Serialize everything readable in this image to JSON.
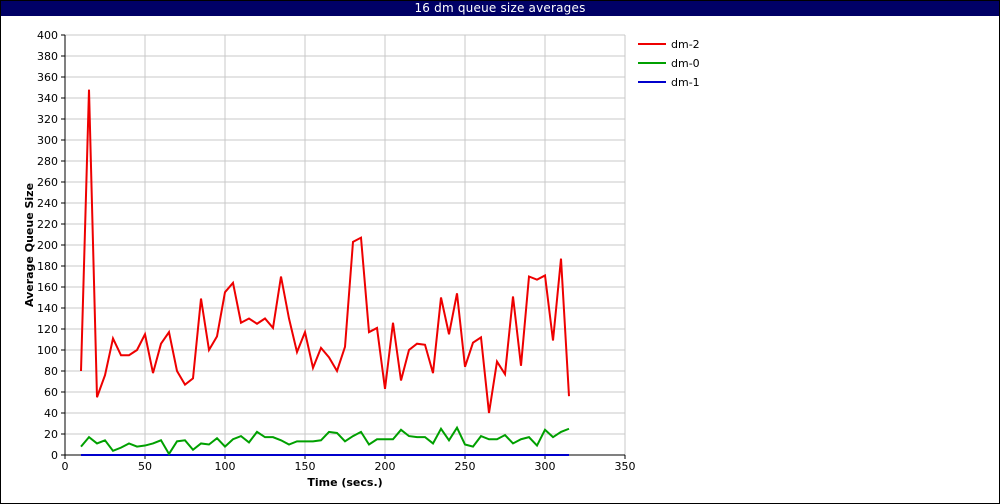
{
  "window": {
    "title": "16 dm queue size averages"
  },
  "chart_data": {
    "type": "line",
    "title": "16 dm queue size averages",
    "xlabel": "Time (secs.)",
    "ylabel": "Average Queue Size",
    "xlim": [
      0,
      350
    ],
    "ylim": [
      0,
      400
    ],
    "xticks": [
      0,
      50,
      100,
      150,
      200,
      250,
      300,
      350
    ],
    "yticks": [
      0,
      20,
      40,
      60,
      80,
      100,
      120,
      140,
      160,
      180,
      200,
      220,
      240,
      260,
      280,
      300,
      320,
      340,
      360,
      380,
      400
    ],
    "grid": true,
    "legend_position": "right",
    "x": [
      10,
      15,
      20,
      25,
      30,
      35,
      40,
      45,
      50,
      55,
      60,
      65,
      70,
      75,
      80,
      85,
      90,
      95,
      100,
      105,
      110,
      115,
      120,
      125,
      130,
      135,
      140,
      145,
      150,
      155,
      160,
      165,
      170,
      175,
      180,
      185,
      190,
      195,
      200,
      205,
      210,
      215,
      220,
      225,
      230,
      235,
      240,
      245,
      250,
      255,
      260,
      265,
      270,
      275,
      280,
      285,
      290,
      295,
      300,
      305,
      310,
      315
    ],
    "series": [
      {
        "name": "dm-2",
        "color": "#ee0000",
        "values": [
          80,
          348,
          55,
          76,
          111,
          95,
          95,
          100,
          115,
          78,
          106,
          117,
          80,
          67,
          73,
          149,
          100,
          113,
          155,
          164,
          126,
          130,
          125,
          130,
          121,
          170,
          130,
          98,
          117,
          83,
          102,
          93,
          80,
          103,
          203,
          207,
          117,
          121,
          63,
          126,
          71,
          100,
          106,
          105,
          78,
          150,
          115,
          154,
          84,
          107,
          112,
          40,
          89,
          77,
          151,
          85,
          170,
          167,
          171,
          109,
          187,
          56
        ]
      },
      {
        "name": "dm-0",
        "color": "#00a000",
        "values": [
          8,
          17,
          11,
          14,
          4,
          7,
          11,
          8,
          9,
          11,
          14,
          1,
          13,
          14,
          5,
          11,
          10,
          16,
          8,
          15,
          18,
          12,
          22,
          17,
          17,
          14,
          10,
          13,
          13,
          13,
          14,
          22,
          21,
          13,
          18,
          22,
          10,
          15,
          15,
          15,
          24,
          18,
          17,
          17,
          11,
          25,
          14,
          26,
          10,
          8,
          18,
          15,
          15,
          19,
          11,
          15,
          17,
          9,
          24,
          17,
          22,
          25
        ]
      },
      {
        "name": "dm-1",
        "color": "#0000cc",
        "values": [
          0,
          0,
          0,
          0,
          0,
          0,
          0,
          0,
          0,
          0,
          0,
          0,
          0,
          0,
          0,
          0,
          0,
          0,
          0,
          0,
          0,
          0,
          0,
          0,
          0,
          0,
          0,
          0,
          0,
          0,
          0,
          0,
          0,
          0,
          0,
          0,
          0,
          0,
          0,
          0,
          0,
          0,
          0,
          0,
          0,
          0,
          0,
          0,
          0,
          0,
          0,
          0,
          0,
          0,
          0,
          0,
          0,
          0,
          0,
          0,
          0,
          0
        ]
      }
    ]
  }
}
